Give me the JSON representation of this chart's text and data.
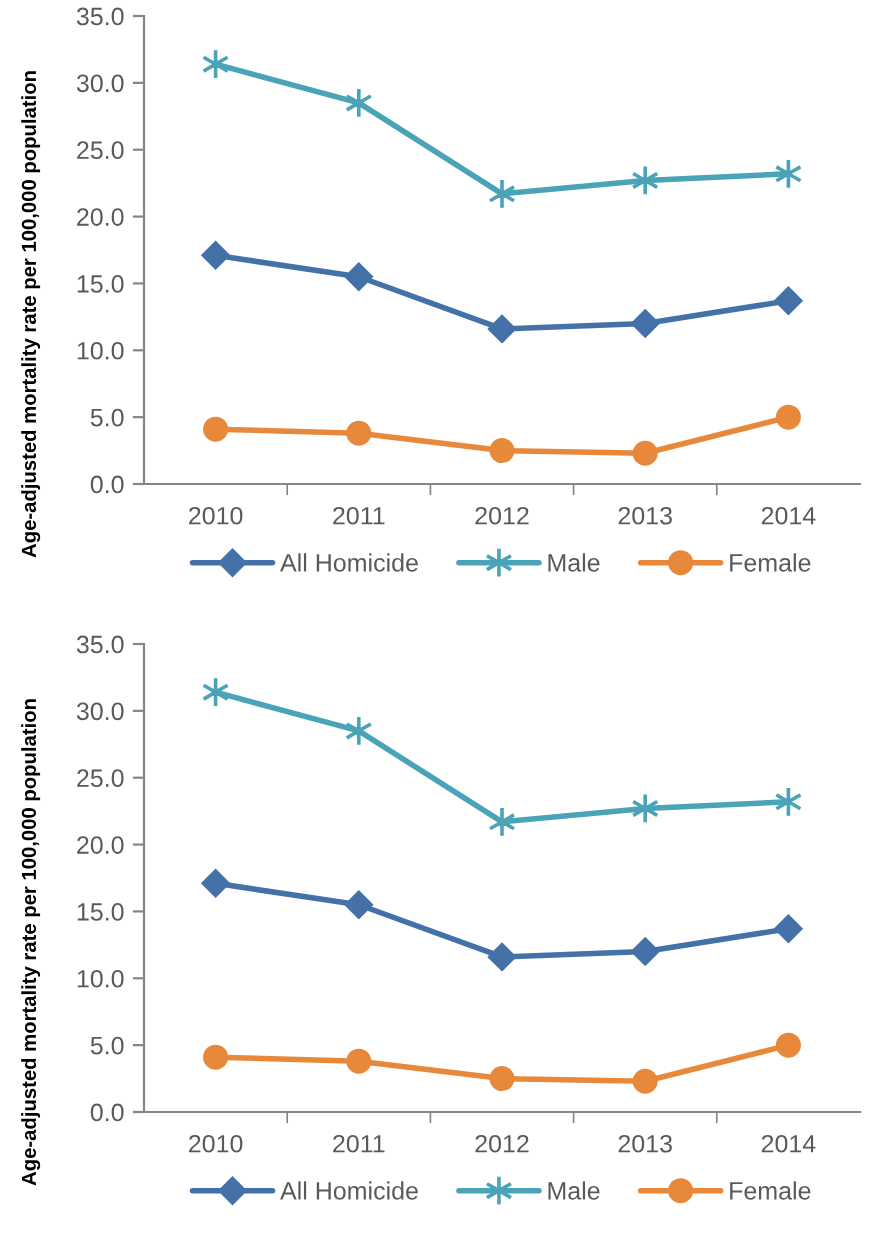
{
  "chart_data": [
    {
      "type": "line",
      "ylabel": "Age-adjusted mortality rate per 100,000 population",
      "categories": [
        "2010",
        "2011",
        "2012",
        "2013",
        "2014"
      ],
      "series": [
        {
          "name": "All Homicide",
          "color": "#4472a8",
          "marker": "diamond",
          "values": [
            17.1,
            15.5,
            11.6,
            12.0,
            13.7
          ]
        },
        {
          "name": "Male",
          "color": "#4ba3b8",
          "marker": "cross",
          "values": [
            31.4,
            28.5,
            21.7,
            22.7,
            23.2
          ]
        },
        {
          "name": "Female",
          "color": "#e8883a",
          "marker": "circle",
          "values": [
            4.1,
            3.8,
            2.5,
            2.3,
            5.0
          ]
        }
      ],
      "ylim": [
        0,
        35
      ],
      "yticks": [
        {
          "value": 0,
          "label": "0.0"
        },
        {
          "value": 5,
          "label": "5.0"
        },
        {
          "value": 10,
          "label": "10.0"
        },
        {
          "value": 15,
          "label": "15.0"
        },
        {
          "value": 20,
          "label": "20.0"
        },
        {
          "value": 25,
          "label": "25.0"
        },
        {
          "value": 30,
          "label": "30.0"
        },
        {
          "value": 35,
          "label": "35.0"
        }
      ],
      "legend": "bottom",
      "line_style": "solid"
    },
    {
      "type": "line",
      "ylabel": "Age-adjusted mortality rate per 100,000 population",
      "categories": [
        "2010",
        "2011",
        "2012",
        "2013",
        "2014"
      ],
      "series": [
        {
          "name": "All Homicide",
          "color": "#4472a8",
          "marker": "diamond",
          "values": [
            17.1,
            15.5,
            11.6,
            12.0,
            13.7
          ]
        },
        {
          "name": "Male",
          "color": "#4ba3b8",
          "marker": "cross",
          "values": [
            31.4,
            28.5,
            21.7,
            22.7,
            23.2
          ]
        },
        {
          "name": "Female",
          "color": "#e8883a",
          "marker": "circle",
          "values": [
            4.1,
            3.8,
            2.5,
            2.3,
            5.0
          ]
        }
      ],
      "ylim": [
        0,
        35
      ],
      "yticks": [
        {
          "value": 0,
          "label": "0.0"
        },
        {
          "value": 5,
          "label": "5.0"
        },
        {
          "value": 10,
          "label": "10.0"
        },
        {
          "value": 15,
          "label": "15.0"
        },
        {
          "value": 20,
          "label": "20.0"
        },
        {
          "value": 25,
          "label": "25.0"
        },
        {
          "value": 30,
          "label": "30.0"
        },
        {
          "value": 35,
          "label": "35.0"
        }
      ],
      "legend": "bottom",
      "line_style": "solid"
    }
  ]
}
